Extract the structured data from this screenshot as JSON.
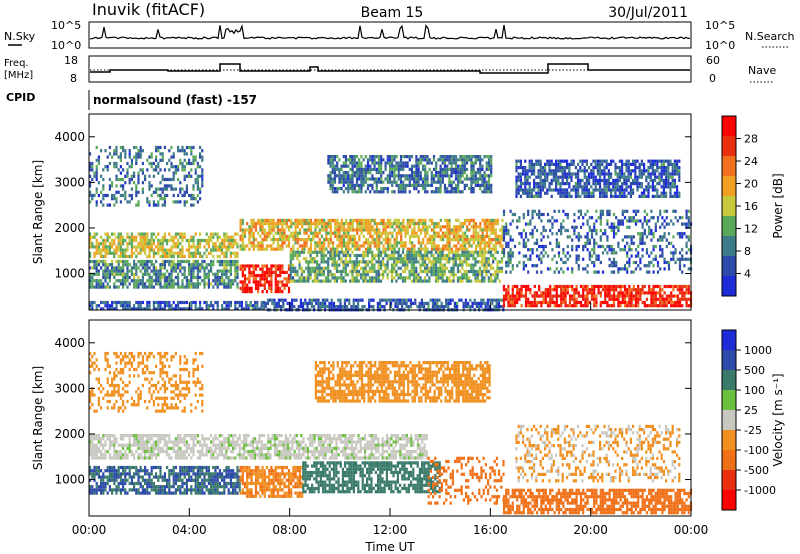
{
  "header": {
    "station": "Inuvik (fitACF)",
    "beam": "Beam 15",
    "date": "30/Jul/2011"
  },
  "strip_labels": {
    "nsky": "N.Sky",
    "nsearch": "N.Search",
    "freq_line1": "Freq.",
    "freq_line2": "[MHz]",
    "nave": "Nave",
    "cpid": "CPID",
    "cpid_value": "normalsound (fast) -157",
    "nsky_ticks": [
      "10^5",
      "10^0"
    ],
    "nsearch_ticks": [
      "10^5",
      "10^0"
    ],
    "freq_ticks": [
      "18",
      "8"
    ],
    "nave_ticks": [
      "60",
      "0"
    ]
  },
  "colors": {
    "power_scale": [
      "#1e2cd8",
      "#2c4aa8",
      "#3d7a8a",
      "#5aa85a",
      "#c8c83c",
      "#f0a020",
      "#f07020",
      "#e83010",
      "#ff0000"
    ],
    "velocity_scale": [
      "#1e2cd8",
      "#2c4aa8",
      "#3a7a6a",
      "#6cc040",
      "#c8c8c0",
      "#f09020",
      "#f07018",
      "#e83010",
      "#ff0000"
    ]
  },
  "chart_data": [
    {
      "type": "heatmap",
      "name": "power",
      "ylabel": "Slant Range [km]",
      "ylim": [
        200,
        4500
      ],
      "yticks": [
        "4000",
        "3000",
        "2000",
        "1000"
      ],
      "xlim": [
        0,
        24
      ],
      "colorbar_label": "Power [dB]",
      "colorbar_ticks": [
        "28",
        "24",
        "20",
        "16",
        "12",
        "8",
        "4"
      ],
      "colorbar_range": [
        0,
        32
      ],
      "bands": [
        {
          "t0": 0.0,
          "t1": 5.9,
          "r0": 1400,
          "r1": 1900,
          "value": 16
        },
        {
          "t0": 0.0,
          "t1": 5.9,
          "r0": 700,
          "r1": 1300,
          "value": 10
        },
        {
          "t0": 0.0,
          "t1": 7.0,
          "r0": 200,
          "r1": 400,
          "value": 6
        },
        {
          "t0": 0.0,
          "t1": 4.5,
          "r0": 2500,
          "r1": 3800,
          "value": 8
        },
        {
          "t0": 6.0,
          "t1": 8.0,
          "r0": 600,
          "r1": 1200,
          "value": 28
        },
        {
          "t0": 6.0,
          "t1": 16.5,
          "r0": 1500,
          "r1": 2200,
          "value": 18
        },
        {
          "t0": 8.0,
          "t1": 16.5,
          "r0": 800,
          "r1": 1500,
          "value": 12
        },
        {
          "t0": 7.0,
          "t1": 16.5,
          "r0": 200,
          "r1": 450,
          "value": 6
        },
        {
          "t0": 9.5,
          "t1": 16.0,
          "r0": 2800,
          "r1": 3600,
          "value": 8
        },
        {
          "t0": 16.5,
          "t1": 24.0,
          "r0": 300,
          "r1": 750,
          "value": 28
        },
        {
          "t0": 16.5,
          "t1": 24.0,
          "r0": 1000,
          "r1": 2400,
          "value": 7
        },
        {
          "t0": 17.0,
          "t1": 23.5,
          "r0": 2700,
          "r1": 3500,
          "value": 6
        }
      ]
    },
    {
      "type": "heatmap",
      "name": "velocity",
      "xlabel": "Time UT",
      "ylabel": "Slant Range [km]",
      "ylim": [
        200,
        4500
      ],
      "yticks": [
        "4000",
        "3000",
        "2000",
        "1000"
      ],
      "xlim": [
        0,
        24
      ],
      "xticks": [
        "00:00",
        "04:00",
        "08:00",
        "12:00",
        "16:00",
        "20:00",
        "00:00"
      ],
      "colorbar_label": "Velocity [m s⁻¹]",
      "colorbar_ticks": [
        "1000",
        "500",
        "100",
        "25",
        "-25",
        "-100",
        "-500",
        "-1000"
      ],
      "bands": [
        {
          "t0": 0.0,
          "t1": 13.5,
          "r0": 1500,
          "r1": 2000,
          "value": 0
        },
        {
          "t0": 0.0,
          "t1": 6.0,
          "r0": 700,
          "r1": 1300,
          "value": 300
        },
        {
          "t0": 0.0,
          "t1": 4.5,
          "r0": 2500,
          "r1": 3800,
          "value": -200
        },
        {
          "t0": 6.0,
          "t1": 8.5,
          "r0": 600,
          "r1": 1300,
          "value": -300
        },
        {
          "t0": 8.5,
          "t1": 14.0,
          "r0": 700,
          "r1": 1400,
          "value": 150
        },
        {
          "t0": 9.0,
          "t1": 16.0,
          "r0": 2700,
          "r1": 3600,
          "value": -150
        },
        {
          "t0": 13.5,
          "t1": 16.5,
          "r0": 500,
          "r1": 1500,
          "value": -400
        },
        {
          "t0": 16.5,
          "t1": 24.0,
          "r0": 300,
          "r1": 800,
          "value": -500
        },
        {
          "t0": 17.0,
          "t1": 23.5,
          "r0": 1000,
          "r1": 2200,
          "value": -80
        }
      ]
    }
  ]
}
